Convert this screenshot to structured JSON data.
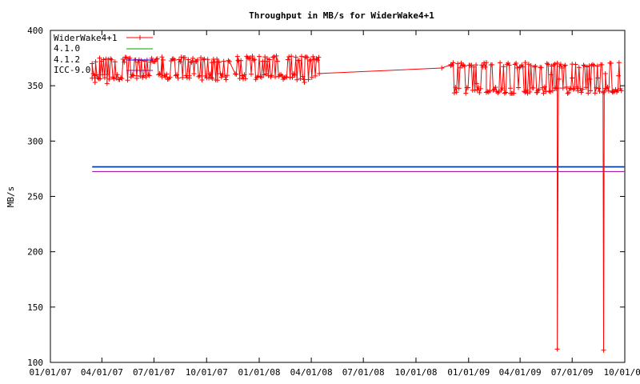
{
  "chart_data": {
    "type": "line",
    "title": "Throughput in MB/s for WiderWake4+1",
    "xlabel": "",
    "ylabel": "MB/s",
    "xlim": [
      "2007-01-01",
      "2009-10-01"
    ],
    "ylim": [
      100,
      400
    ],
    "xticks": [
      "01/01/07",
      "04/01/07",
      "07/01/07",
      "10/01/07",
      "01/01/08",
      "04/01/08",
      "07/01/08",
      "10/01/08",
      "01/01/09",
      "04/01/09",
      "07/01/09",
      "10/01/09"
    ],
    "yticks": [
      100,
      150,
      200,
      250,
      300,
      350,
      400
    ],
    "grid": false,
    "legend_position": "top-left",
    "series": [
      {
        "name": "WiderWake4+1",
        "color": "#ff0000",
        "marker": "plus",
        "segments": [
          {
            "x_start": "2007-03-15",
            "x_end": "2007-11-10",
            "y_low": 352,
            "y_high": 376
          },
          {
            "x_start": "2007-11-20",
            "x_end": "2008-04-15",
            "y_low": 352,
            "y_high": 377
          },
          {
            "x_start": "2008-12-01",
            "x_end": "2009-09-25",
            "y_low": 340,
            "y_high": 371
          }
        ],
        "points": [
          {
            "x": "2007-03-15",
            "y": 370
          },
          {
            "x": "2007-03-20",
            "y": 353
          },
          {
            "x": "2007-03-28",
            "y": 375
          },
          {
            "x": "2007-04-10",
            "y": 352
          },
          {
            "x": "2007-06-01",
            "y": 359
          },
          {
            "x": "2007-07-15",
            "y": 358
          },
          {
            "x": "2007-09-01",
            "y": 359
          },
          {
            "x": "2007-10-10",
            "y": 371
          },
          {
            "x": "2007-10-20",
            "y": 355
          },
          {
            "x": "2007-11-25",
            "y": 373
          },
          {
            "x": "2008-01-15",
            "y": 372
          },
          {
            "x": "2008-03-20",
            "y": 353
          },
          {
            "x": "2008-04-15",
            "y": 361
          },
          {
            "x": "2008-11-15",
            "y": 366
          },
          {
            "x": "2008-12-01",
            "y": 368
          },
          {
            "x": "2009-01-15",
            "y": 352
          },
          {
            "x": "2009-02-01",
            "y": 344
          },
          {
            "x": "2009-03-15",
            "y": 343
          },
          {
            "x": "2009-04-10",
            "y": 371
          },
          {
            "x": "2009-05-01",
            "y": 344
          },
          {
            "x": "2009-05-25",
            "y": 360
          },
          {
            "x": "2009-06-01",
            "y": 348
          },
          {
            "x": "2009-06-05",
            "y": 112
          },
          {
            "x": "2009-06-08",
            "y": 356
          },
          {
            "x": "2009-07-01",
            "y": 357
          },
          {
            "x": "2009-08-01",
            "y": 356
          },
          {
            "x": "2009-08-15",
            "y": 357
          },
          {
            "x": "2009-08-25",
            "y": 111
          },
          {
            "x": "2009-08-28",
            "y": 361
          },
          {
            "x": "2009-09-10",
            "y": 344
          },
          {
            "x": "2009-09-20",
            "y": 359
          }
        ]
      },
      {
        "name": "4.1.0",
        "color": "#00a000",
        "y": 277,
        "x_start": "2007-03-15",
        "x_end": "2009-09-30"
      },
      {
        "name": "4.1.2",
        "color": "#0000ff",
        "y": 276.5,
        "x_start": "2007-03-15",
        "x_end": "2009-09-30"
      },
      {
        "name": "ICC-9.0",
        "color": "#a000a0",
        "y": 272.5,
        "x_start": "2007-03-15",
        "x_end": "2009-09-30"
      }
    ]
  }
}
